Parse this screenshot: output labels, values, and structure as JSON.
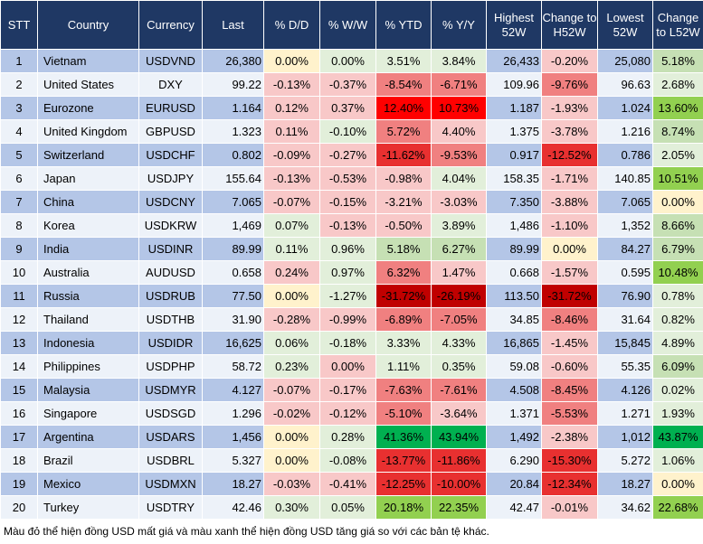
{
  "headers": [
    "STT",
    "Country",
    "Currency",
    "Last",
    "% D/D",
    "% W/W",
    "% YTD",
    "% Y/Y",
    "Highest 52W",
    "Change to H52W",
    "Lowest 52W",
    "Change to L52W"
  ],
  "colors": {
    "y": "#fff2cc",
    "g0": "#e2efda",
    "g1": "#c6e0b4",
    "g2": "#92d050",
    "g3": "#00b050",
    "r1": "#f8c8c8",
    "r2": "#f08080",
    "r3": "#e83030",
    "rr": "#ff0000",
    "r4": "#c00000"
  },
  "rows": [
    {
      "stt": "1",
      "country": "Vietnam",
      "currency": "USDVND",
      "last": "26,380",
      "dd": "0.00%",
      "ww": "0.00%",
      "ytd": "3.51%",
      "yy": "3.84%",
      "high": "26,433",
      "chh": "-0.20%",
      "low": "25,080",
      "chl": "5.18%",
      "c": [
        "y",
        "g0",
        "g0",
        "g0",
        "r1",
        "g1"
      ]
    },
    {
      "stt": "2",
      "country": "United States",
      "currency": "DXY",
      "last": "99.22",
      "dd": "-0.13%",
      "ww": "-0.37%",
      "ytd": "-8.54%",
      "yy": "-6.71%",
      "high": "109.96",
      "chh": "-9.76%",
      "low": "96.63",
      "chl": "2.68%",
      "c": [
        "r1",
        "r1",
        "r2",
        "r2",
        "r2",
        "g0"
      ]
    },
    {
      "stt": "3",
      "country": "Eurozone",
      "currency": "EURUSD",
      "last": "1.164",
      "dd": "0.12%",
      "ww": "0.37%",
      "ytd": "12.40%",
      "yy": "10.73%",
      "high": "1.187",
      "chh": "-1.93%",
      "low": "1.024",
      "chl": "13.60%",
      "c": [
        "r1",
        "r1",
        "rr",
        "rr",
        "r1",
        "g2"
      ]
    },
    {
      "stt": "4",
      "country": "United Kingdom",
      "currency": "GBPUSD",
      "last": "1.323",
      "dd": "0.11%",
      "ww": "-0.10%",
      "ytd": "5.72%",
      "yy": "4.40%",
      "high": "1.375",
      "chh": "-3.78%",
      "low": "1.216",
      "chl": "8.74%",
      "c": [
        "r1",
        "g0",
        "r2",
        "r1",
        "r1",
        "g1"
      ]
    },
    {
      "stt": "5",
      "country": "Switzerland",
      "currency": "USDCHF",
      "last": "0.802",
      "dd": "-0.09%",
      "ww": "-0.27%",
      "ytd": "-11.62%",
      "yy": "-9.53%",
      "high": "0.917",
      "chh": "-12.52%",
      "low": "0.786",
      "chl": "2.05%",
      "c": [
        "r1",
        "r1",
        "r3",
        "r2",
        "r3",
        "g0"
      ]
    },
    {
      "stt": "6",
      "country": "Japan",
      "currency": "USDJPY",
      "last": "155.64",
      "dd": "-0.13%",
      "ww": "-0.53%",
      "ytd": "-0.98%",
      "yy": "4.04%",
      "high": "158.35",
      "chh": "-1.71%",
      "low": "140.85",
      "chl": "10.51%",
      "c": [
        "r1",
        "r1",
        "r1",
        "g0",
        "r1",
        "g2"
      ]
    },
    {
      "stt": "7",
      "country": "China",
      "currency": "USDCNY",
      "last": "7.065",
      "dd": "-0.07%",
      "ww": "-0.15%",
      "ytd": "-3.21%",
      "yy": "-3.03%",
      "high": "7.350",
      "chh": "-3.88%",
      "low": "7.065",
      "chl": "0.00%",
      "c": [
        "r1",
        "r1",
        "r1",
        "r1",
        "r1",
        "y"
      ]
    },
    {
      "stt": "8",
      "country": "Korea",
      "currency": "USDKRW",
      "last": "1,469",
      "dd": "0.07%",
      "ww": "-0.13%",
      "ytd": "-0.50%",
      "yy": "3.89%",
      "high": "1,486",
      "chh": "-1.10%",
      "low": "1,352",
      "chl": "8.66%",
      "c": [
        "g0",
        "r1",
        "r1",
        "g0",
        "r1",
        "g1"
      ]
    },
    {
      "stt": "9",
      "country": "India",
      "currency": "USDINR",
      "last": "89.99",
      "dd": "0.11%",
      "ww": "0.96%",
      "ytd": "5.18%",
      "yy": "6.27%",
      "high": "89.99",
      "chh": "0.00%",
      "low": "84.27",
      "chl": "6.79%",
      "c": [
        "g0",
        "g0",
        "g1",
        "g1",
        "y",
        "g1"
      ]
    },
    {
      "stt": "10",
      "country": "Australia",
      "currency": "AUDUSD",
      "last": "0.658",
      "dd": "0.24%",
      "ww": "0.97%",
      "ytd": "6.32%",
      "yy": "1.47%",
      "high": "0.668",
      "chh": "-1.57%",
      "low": "0.595",
      "chl": "10.48%",
      "c": [
        "r1",
        "g0",
        "r2",
        "r1",
        "r1",
        "g2"
      ]
    },
    {
      "stt": "11",
      "country": "Russia",
      "currency": "USDRUB",
      "last": "77.50",
      "dd": "0.00%",
      "ww": "-1.27%",
      "ytd": "-31.72%",
      "yy": "-26.19%",
      "high": "113.50",
      "chh": "-31.72%",
      "low": "76.90",
      "chl": "0.78%",
      "c": [
        "y",
        "g0",
        "r4",
        "r4",
        "r4",
        "g0"
      ]
    },
    {
      "stt": "12",
      "country": "Thailand",
      "currency": "USDTHB",
      "last": "31.90",
      "dd": "-0.28%",
      "ww": "-0.99%",
      "ytd": "-6.89%",
      "yy": "-7.05%",
      "high": "34.85",
      "chh": "-8.46%",
      "low": "31.64",
      "chl": "0.82%",
      "c": [
        "r1",
        "r1",
        "r2",
        "r2",
        "r2",
        "g0"
      ]
    },
    {
      "stt": "13",
      "country": "Indonesia",
      "currency": "USDIDR",
      "last": "16,625",
      "dd": "0.06%",
      "ww": "-0.18%",
      "ytd": "3.33%",
      "yy": "4.33%",
      "high": "16,865",
      "chh": "-1.45%",
      "low": "15,845",
      "chl": "4.89%",
      "c": [
        "g0",
        "g0",
        "g0",
        "g0",
        "r1",
        "g0"
      ]
    },
    {
      "stt": "14",
      "country": "Philippines",
      "currency": "USDPHP",
      "last": "58.72",
      "dd": "0.23%",
      "ww": "0.00%",
      "ytd": "1.11%",
      "yy": "0.35%",
      "high": "59.08",
      "chh": "-0.60%",
      "low": "55.35",
      "chl": "6.09%",
      "c": [
        "g0",
        "r1",
        "g0",
        "g0",
        "r1",
        "g1"
      ]
    },
    {
      "stt": "15",
      "country": "Malaysia",
      "currency": "USDMYR",
      "last": "4.127",
      "dd": "-0.07%",
      "ww": "-0.17%",
      "ytd": "-7.63%",
      "yy": "-7.61%",
      "high": "4.508",
      "chh": "-8.45%",
      "low": "4.126",
      "chl": "0.02%",
      "c": [
        "r1",
        "r1",
        "r2",
        "r2",
        "r2",
        "g0"
      ]
    },
    {
      "stt": "16",
      "country": "Singapore",
      "currency": "USDSGD",
      "last": "1.296",
      "dd": "-0.02%",
      "ww": "-0.12%",
      "ytd": "-5.10%",
      "yy": "-3.64%",
      "high": "1.371",
      "chh": "-5.53%",
      "low": "1.271",
      "chl": "1.93%",
      "c": [
        "r1",
        "r1",
        "r2",
        "r1",
        "r2",
        "g0"
      ]
    },
    {
      "stt": "17",
      "country": "Argentina",
      "currency": "USDARS",
      "last": "1,456",
      "dd": "0.00%",
      "ww": "0.28%",
      "ytd": "41.36%",
      "yy": "43.94%",
      "high": "1,492",
      "chh": "-2.38%",
      "low": "1,012",
      "chl": "43.87%",
      "c": [
        "y",
        "g0",
        "g3",
        "g3",
        "r1",
        "g3"
      ]
    },
    {
      "stt": "18",
      "country": "Brazil",
      "currency": "USDBRL",
      "last": "5.327",
      "dd": "0.00%",
      "ww": "-0.08%",
      "ytd": "-13.77%",
      "yy": "-11.86%",
      "high": "6.290",
      "chh": "-15.30%",
      "low": "5.272",
      "chl": "1.06%",
      "c": [
        "y",
        "g0",
        "r3",
        "r3",
        "r3",
        "g0"
      ]
    },
    {
      "stt": "19",
      "country": "Mexico",
      "currency": "USDMXN",
      "last": "18.27",
      "dd": "-0.03%",
      "ww": "-0.41%",
      "ytd": "-12.25%",
      "yy": "-10.00%",
      "high": "20.84",
      "chh": "-12.34%",
      "low": "18.27",
      "chl": "0.00%",
      "c": [
        "r1",
        "r1",
        "r3",
        "r3",
        "r3",
        "y"
      ]
    },
    {
      "stt": "20",
      "country": "Turkey",
      "currency": "USDTRY",
      "last": "42.46",
      "dd": "0.30%",
      "ww": "0.05%",
      "ytd": "20.18%",
      "yy": "22.35%",
      "high": "42.47",
      "chh": "-0.01%",
      "low": "34.62",
      "chl": "22.68%",
      "c": [
        "g0",
        "g0",
        "g2",
        "g2",
        "r1",
        "g2"
      ]
    }
  ],
  "footer": "Màu đỏ thể hiện đồng USD mất giá và màu xanh thể hiện đồng USD tăng giá so với các bản tệ khác."
}
